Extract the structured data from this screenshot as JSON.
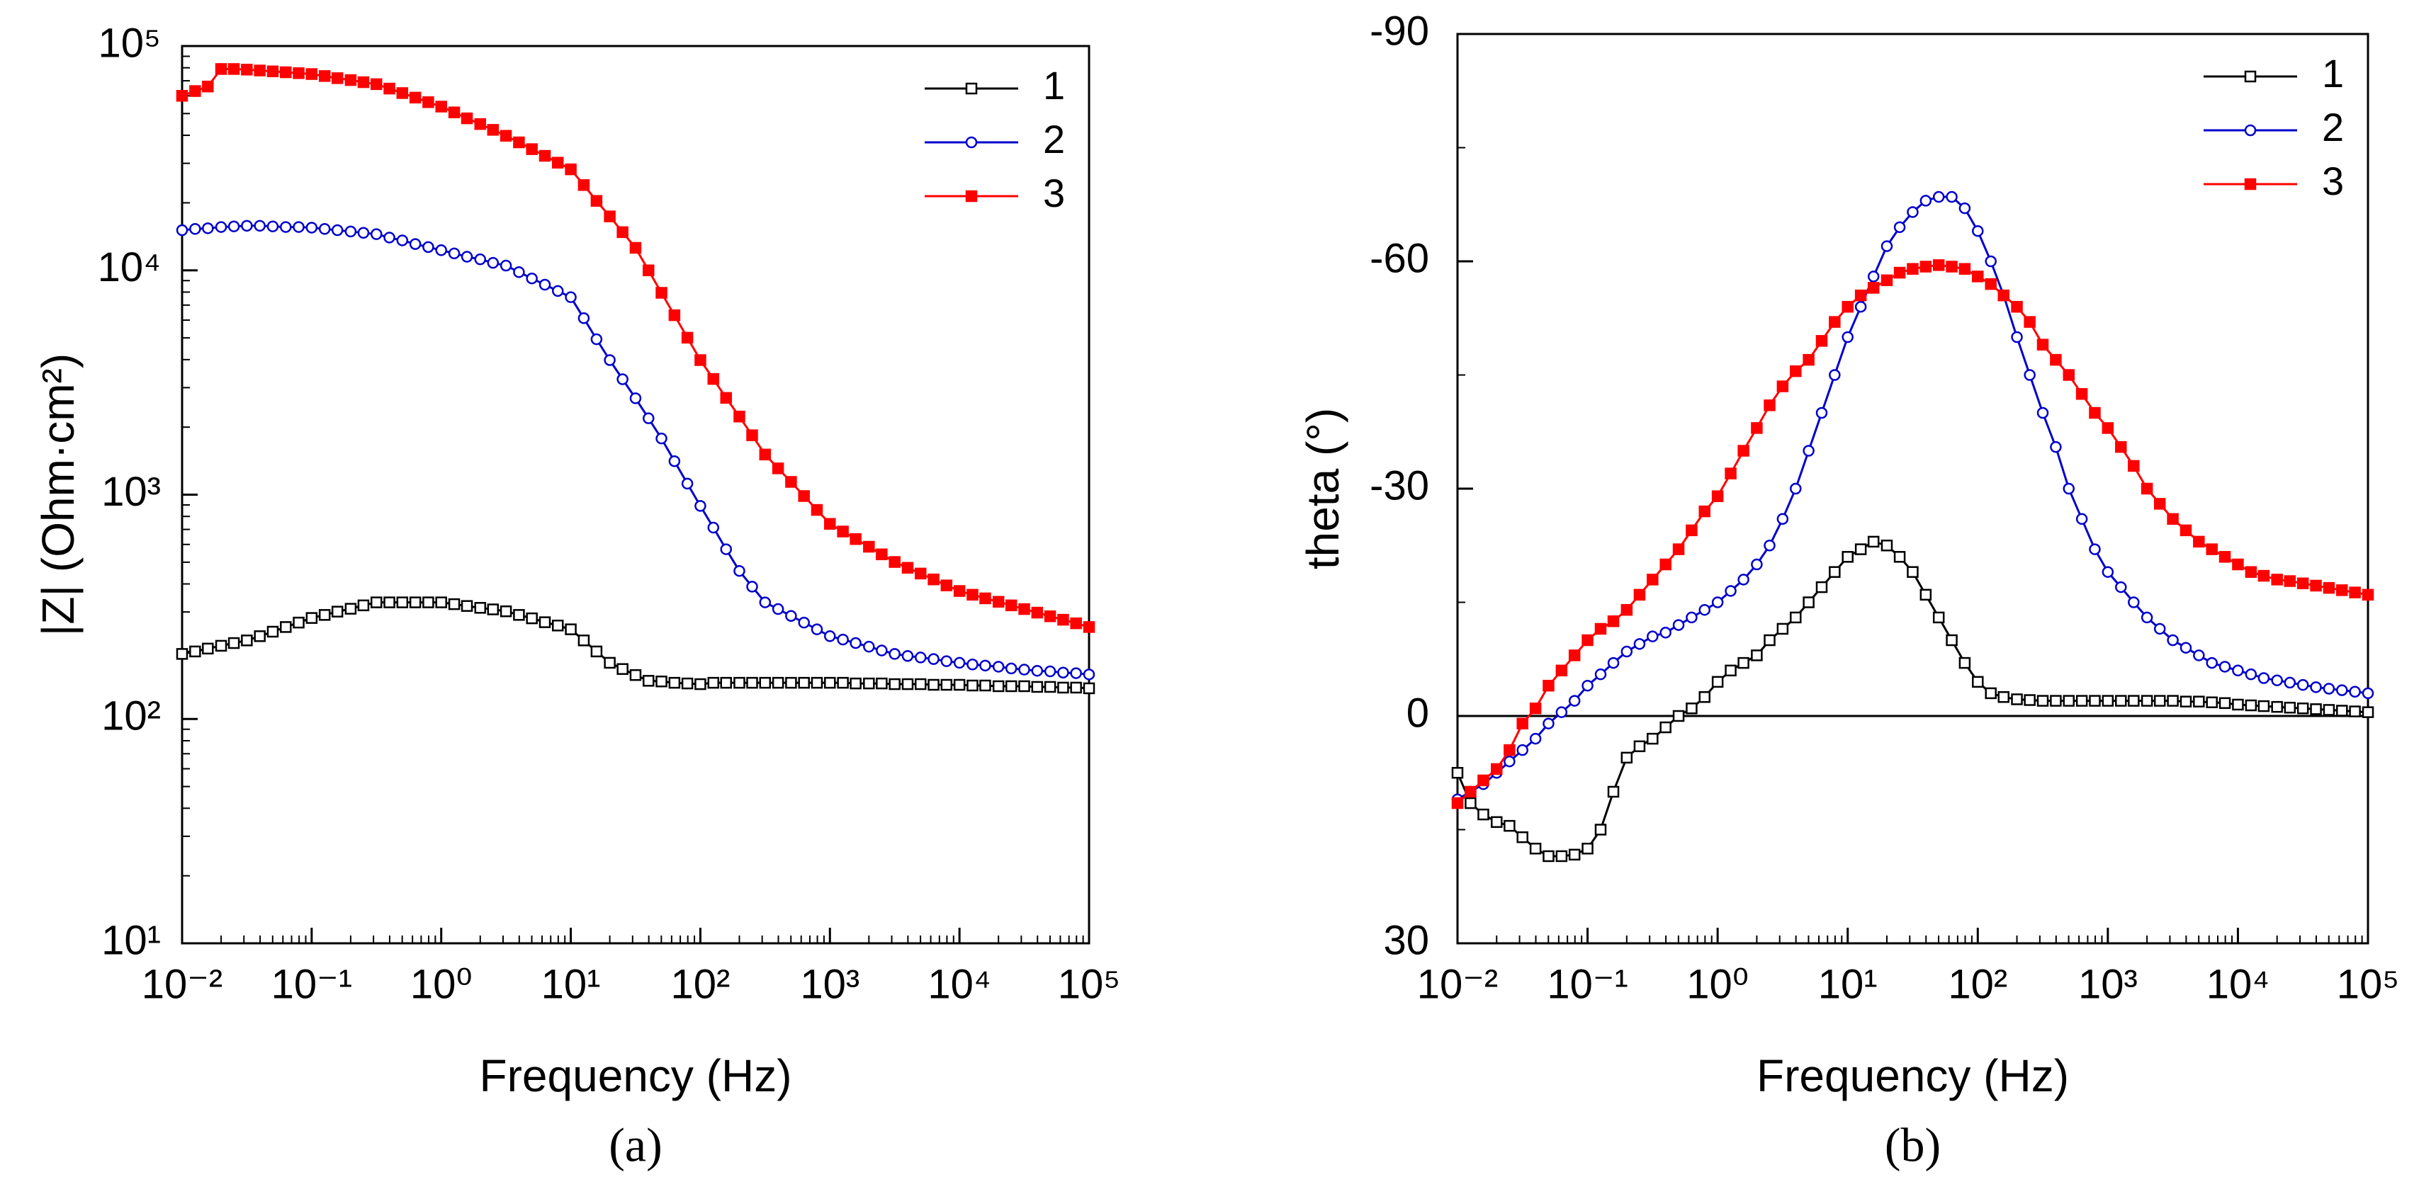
{
  "chart_data": [
    {
      "type": "line",
      "panel_label": "(a)",
      "xlabel": "Frequency (Hz)",
      "ylabel": "|Z| (Ohm·cm²)",
      "xlog": true,
      "ylog": true,
      "legend": "upper right",
      "xlim": [
        0.01,
        100000
      ],
      "xticks": [
        {
          "value": 0.01,
          "label": "10⁻²"
        },
        {
          "value": 0.1,
          "label": "10⁻¹"
        },
        {
          "value": 1,
          "label": "10⁰"
        },
        {
          "value": 10,
          "label": "10¹"
        },
        {
          "value": 100,
          "label": "10²"
        },
        {
          "value": 1000,
          "label": "10³"
        },
        {
          "value": 10000,
          "label": "10⁴"
        },
        {
          "value": 100000,
          "label": "10⁵"
        }
      ],
      "ylim": [
        10,
        100000
      ],
      "yticks": [
        {
          "value": 10,
          "label": "10¹"
        },
        {
          "value": 100,
          "label": "10²"
        },
        {
          "value": 1000,
          "label": "10³"
        },
        {
          "value": 10000,
          "label": "10⁴"
        },
        {
          "value": 100000,
          "label": "10⁵"
        }
      ],
      "x": [
        0.01,
        0.0126,
        0.0158,
        0.02,
        0.0251,
        0.0316,
        0.0398,
        0.0501,
        0.0631,
        0.0794,
        0.1,
        0.126,
        0.158,
        0.2,
        0.251,
        0.316,
        0.398,
        0.501,
        0.631,
        0.794,
        1,
        1.26,
        1.58,
        2,
        2.51,
        3.16,
        3.98,
        5.01,
        6.31,
        7.94,
        10,
        12.6,
        15.8,
        20,
        25.1,
        31.6,
        39.8,
        50.1,
        63.1,
        79.4,
        100,
        126,
        158,
        200,
        251,
        316,
        398,
        501,
        631,
        794,
        1000,
        1260,
        1580,
        2000,
        2510,
        3160,
        3980,
        5010,
        6310,
        7940,
        10000,
        12600,
        15800,
        20000,
        25100,
        31600,
        39800,
        50100,
        63100,
        79400,
        100000
      ],
      "series": [
        {
          "name": "1",
          "color": "#000000",
          "marker": "square-open",
          "values": [
            195,
            200,
            206,
            212,
            218,
            224,
            234,
            245,
            257,
            269,
            282,
            291,
            301,
            310,
            321,
            331,
            331,
            331,
            331,
            331,
            331,
            325,
            319,
            313,
            308,
            302,
            291,
            281,
            270,
            261,
            251,
            224,
            200,
            178,
            167,
            157,
            148,
            147,
            145,
            144,
            143,
            145,
            145,
            145,
            145,
            145,
            145,
            145,
            145,
            145,
            145,
            145,
            144,
            144,
            144,
            143,
            143,
            143,
            142,
            142,
            142,
            141,
            141,
            140,
            140,
            140,
            139,
            139,
            138,
            138,
            137
          ]
        },
        {
          "name": "2",
          "color": "#0000cc",
          "marker": "circle-open",
          "values": [
            15100,
            15300,
            15400,
            15600,
            15700,
            15800,
            15800,
            15700,
            15600,
            15600,
            15500,
            15300,
            15100,
            14900,
            14700,
            14500,
            14000,
            13600,
            13100,
            12700,
            12300,
            11900,
            11500,
            11200,
            10800,
            10500,
            9820,
            9200,
            8630,
            8090,
            7590,
            6120,
            4930,
            3980,
            3270,
            2690,
            2190,
            1780,
            1410,
            1120,
            891,
            713,
            571,
            457,
            389,
            331,
            309,
            288,
            269,
            251,
            234,
            226,
            218,
            210,
            202,
            195,
            191,
            188,
            185,
            181,
            178,
            175,
            173,
            171,
            168,
            166,
            164,
            163,
            161,
            160,
            158
          ]
        },
        {
          "name": "3",
          "color": "#ff0000",
          "marker": "square",
          "values": [
            60000,
            63000,
            66000,
            79000,
            79000,
            78500,
            77800,
            77100,
            76400,
            75700,
            75000,
            73500,
            71900,
            70500,
            69000,
            67600,
            64600,
            61700,
            58900,
            56200,
            53700,
            50600,
            47600,
            44900,
            42300,
            39800,
            37200,
            34700,
            32400,
            30200,
            28200,
            24000,
            20400,
            17400,
            14800,
            12600,
            10000,
            7940,
            6310,
            5010,
            3980,
            3280,
            2700,
            2230,
            1840,
            1510,
            1310,
            1140,
            986,
            855,
            741,
            685,
            634,
            586,
            542,
            501,
            472,
            445,
            419,
            394,
            372,
            358,
            345,
            333,
            321,
            309,
            298,
            287,
            277,
            267,
            257
          ]
        }
      ]
    },
    {
      "type": "line",
      "panel_label": "(b)",
      "xlabel": "Frequency (Hz)",
      "ylabel": "theta (°)",
      "xlog": true,
      "ylog": false,
      "legend": "upper right",
      "reference_line": 0,
      "xlim": [
        0.01,
        100000
      ],
      "xticks": [
        {
          "value": 0.01,
          "label": "10⁻²"
        },
        {
          "value": 0.1,
          "label": "10⁻¹"
        },
        {
          "value": 1,
          "label": "10⁰"
        },
        {
          "value": 10,
          "label": "10¹"
        },
        {
          "value": 100,
          "label": "10²"
        },
        {
          "value": 1000,
          "label": "10³"
        },
        {
          "value": 10000,
          "label": "10⁴"
        },
        {
          "value": 100000,
          "label": "10⁵"
        }
      ],
      "ylim": [
        30,
        -90
      ],
      "yticks": [
        30,
        0,
        -30,
        -60,
        -90
      ],
      "x": [
        0.01,
        0.0126,
        0.0158,
        0.02,
        0.0251,
        0.0316,
        0.0398,
        0.0501,
        0.0631,
        0.0794,
        0.1,
        0.126,
        0.158,
        0.2,
        0.251,
        0.316,
        0.398,
        0.501,
        0.631,
        0.794,
        1,
        1.26,
        1.58,
        2,
        2.51,
        3.16,
        3.98,
        5.01,
        6.31,
        7.94,
        10,
        12.6,
        15.8,
        20,
        25.1,
        31.6,
        39.8,
        50.1,
        63.1,
        79.4,
        100,
        126,
        158,
        200,
        251,
        316,
        398,
        501,
        631,
        794,
        1000,
        1260,
        1580,
        2000,
        2510,
        3160,
        3980,
        5010,
        6310,
        7940,
        10000,
        12600,
        15800,
        20000,
        25100,
        31600,
        39800,
        50100,
        63100,
        79400,
        100000
      ],
      "series": [
        {
          "name": "1",
          "color": "#000000",
          "marker": "square-open",
          "values": [
            7.5,
            11.5,
            13,
            14,
            14.5,
            16,
            17.5,
            18.5,
            18.5,
            18.3,
            17.5,
            15,
            10,
            5.5,
            4,
            3,
            1.5,
            0,
            -1,
            -2.5,
            -4.5,
            -6,
            -7,
            -8,
            -10,
            -11.5,
            -13,
            -15,
            -17,
            -19,
            -21,
            -22,
            -23,
            -22.5,
            -21,
            -19,
            -16,
            -13,
            -10,
            -7,
            -4.5,
            -3,
            -2.5,
            -2.2,
            -2.1,
            -2,
            -2,
            -2,
            -2,
            -2,
            -2,
            -2,
            -2,
            -2,
            -2,
            -2,
            -1.9,
            -1.9,
            -1.8,
            -1.7,
            -1.5,
            -1.4,
            -1.3,
            -1.2,
            -1.1,
            -1,
            -0.9,
            -0.8,
            -0.7,
            -0.6,
            -0.5
          ]
        },
        {
          "name": "2",
          "color": "#0000cc",
          "marker": "circle-open",
          "values": [
            11,
            10,
            9,
            7.5,
            6,
            4.5,
            3,
            1,
            -0.5,
            -2,
            -4,
            -5.5,
            -7,
            -8.5,
            -9.5,
            -10.5,
            -11,
            -12,
            -13,
            -14,
            -15,
            -16.5,
            -18,
            -20,
            -22.5,
            -26,
            -30,
            -35,
            -40,
            -45,
            -50,
            -54,
            -58,
            -62,
            -64.5,
            -66.5,
            -68,
            -68.5,
            -68.5,
            -67,
            -64,
            -60,
            -55.5,
            -50,
            -45,
            -40,
            -35.5,
            -30,
            -26,
            -22,
            -19,
            -17,
            -15,
            -13,
            -11.5,
            -10,
            -9,
            -8,
            -7,
            -6.5,
            -6,
            -5.5,
            -5,
            -4.7,
            -4.4,
            -4.1,
            -3.8,
            -3.6,
            -3.4,
            -3.2,
            -3
          ]
        },
        {
          "name": "3",
          "color": "#ff0000",
          "marker": "square",
          "values": [
            11.5,
            10,
            8.5,
            7,
            4.5,
            1,
            -1,
            -4,
            -6,
            -8,
            -10,
            -11.5,
            -12.5,
            -14,
            -16,
            -18,
            -20,
            -22,
            -24.5,
            -27,
            -29,
            -32,
            -35,
            -38,
            -41,
            -43.5,
            -45.5,
            -47,
            -49.5,
            -52,
            -54,
            -55.5,
            -56.5,
            -57.5,
            -58.5,
            -59,
            -59.3,
            -59.5,
            -59.3,
            -59,
            -58,
            -57,
            -55.5,
            -54,
            -52,
            -49,
            -47,
            -45,
            -42.5,
            -40,
            -38,
            -35.5,
            -33,
            -30,
            -28,
            -26,
            -24.5,
            -23,
            -22,
            -21,
            -20,
            -19,
            -18.5,
            -18,
            -17.8,
            -17.5,
            -17.2,
            -16.9,
            -16.6,
            -16.3,
            -16
          ]
        }
      ]
    }
  ]
}
